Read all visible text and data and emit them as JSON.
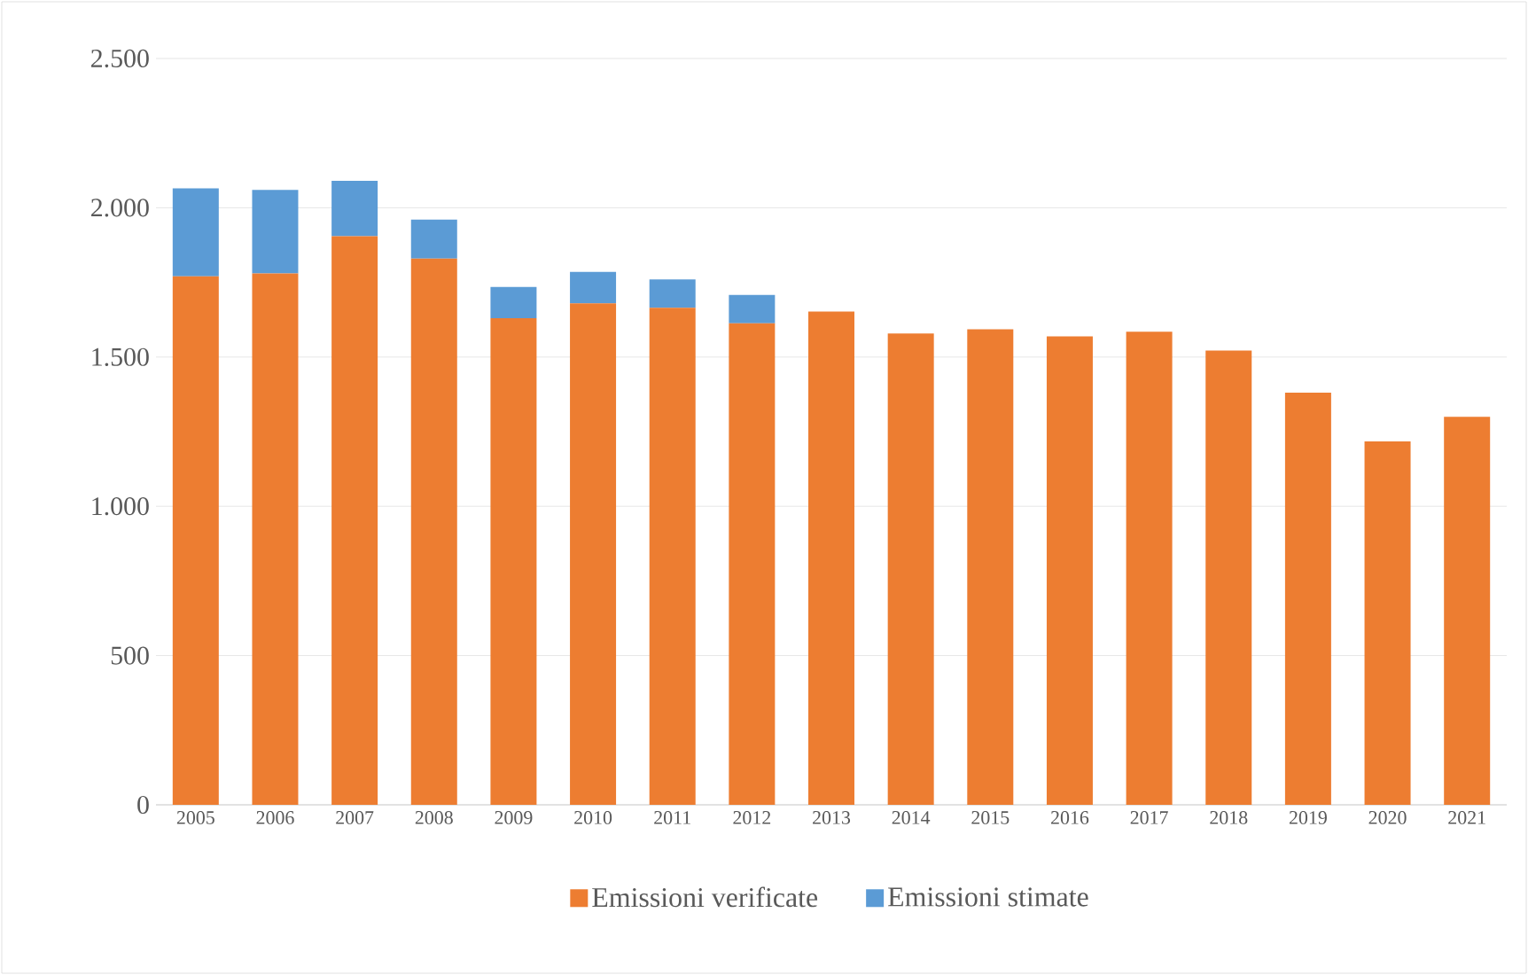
{
  "chart_data": {
    "type": "bar",
    "stacked": true,
    "categories": [
      "2005",
      "2006",
      "2007",
      "2008",
      "2009",
      "2010",
      "2011",
      "2012",
      "2013",
      "2014",
      "2015",
      "2016",
      "2017",
      "2018",
      "2019",
      "2020",
      "2021"
    ],
    "series": [
      {
        "name": "Emissioni verificate",
        "color": "#ed7d31",
        "values": [
          1770,
          1780,
          1905,
          1830,
          1630,
          1680,
          1665,
          1613,
          1652,
          1579,
          1593,
          1569,
          1585,
          1522,
          1381,
          1217,
          1300
        ]
      },
      {
        "name": "Emissioni stimate",
        "color": "#5b9bd5",
        "values": [
          295,
          280,
          185,
          130,
          105,
          105,
          95,
          95,
          null,
          null,
          null,
          null,
          null,
          null,
          null,
          null,
          null
        ]
      }
    ],
    "ylim": [
      0,
      2500
    ],
    "yticks": [
      0,
      500,
      {
        "value": 1000,
        "label": "1.000"
      },
      {
        "value": 1500,
        "label": "1.500"
      },
      {
        "value": 2000,
        "label": "2.000"
      },
      {
        "value": 2500,
        "label": "2.500"
      }
    ],
    "grid": "y",
    "legend": "bottom"
  }
}
